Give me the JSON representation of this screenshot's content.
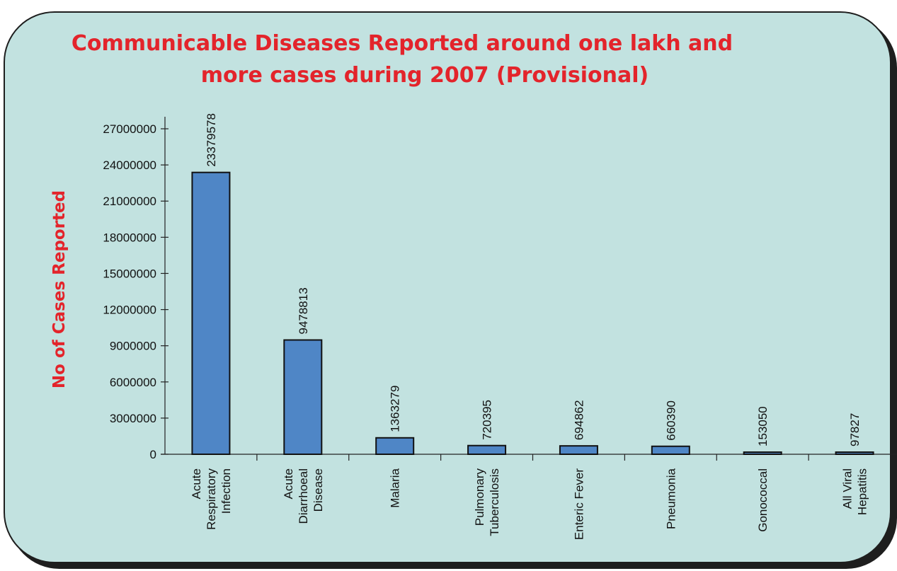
{
  "chart_data": {
    "type": "bar",
    "title_lines": [
      "Communicable Diseases Reported around one lakh and",
      "more  cases during 2007 (Provisional)"
    ],
    "ylabel": "No of Cases Reported",
    "xlabel": "",
    "ylim": [
      0,
      27000000
    ],
    "yticks": [
      "0",
      "3000000",
      "6000000",
      "9000000",
      "12000000",
      "15000000",
      "18000000",
      "21000000",
      "24000000",
      "27000000"
    ],
    "categories": [
      [
        "Acute",
        "Respiratory",
        "Infection"
      ],
      [
        "Acute",
        "Diarrhoeal",
        "Disease"
      ],
      [
        "Malaria"
      ],
      [
        "Pulmonary",
        "Tuberculosis"
      ],
      [
        "Enteric Fever"
      ],
      [
        "Pneumonia"
      ],
      [
        "Gonococcal"
      ],
      [
        "All Viral",
        "Hepatitis"
      ]
    ],
    "values": [
      23379578,
      9478813,
      1363279,
      720395,
      694862,
      660390,
      153050,
      97827
    ],
    "data_labels": [
      "23379578",
      "9478813",
      "1363279",
      "720395",
      "694862",
      "660390",
      "153050",
      "97827"
    ],
    "grid": false,
    "legend": "none"
  },
  "colors": {
    "bar_fill": "#4f86c6",
    "panel_bg": "#c2e2e0",
    "title": "#e3242b",
    "frame": "#1e1e1e"
  }
}
